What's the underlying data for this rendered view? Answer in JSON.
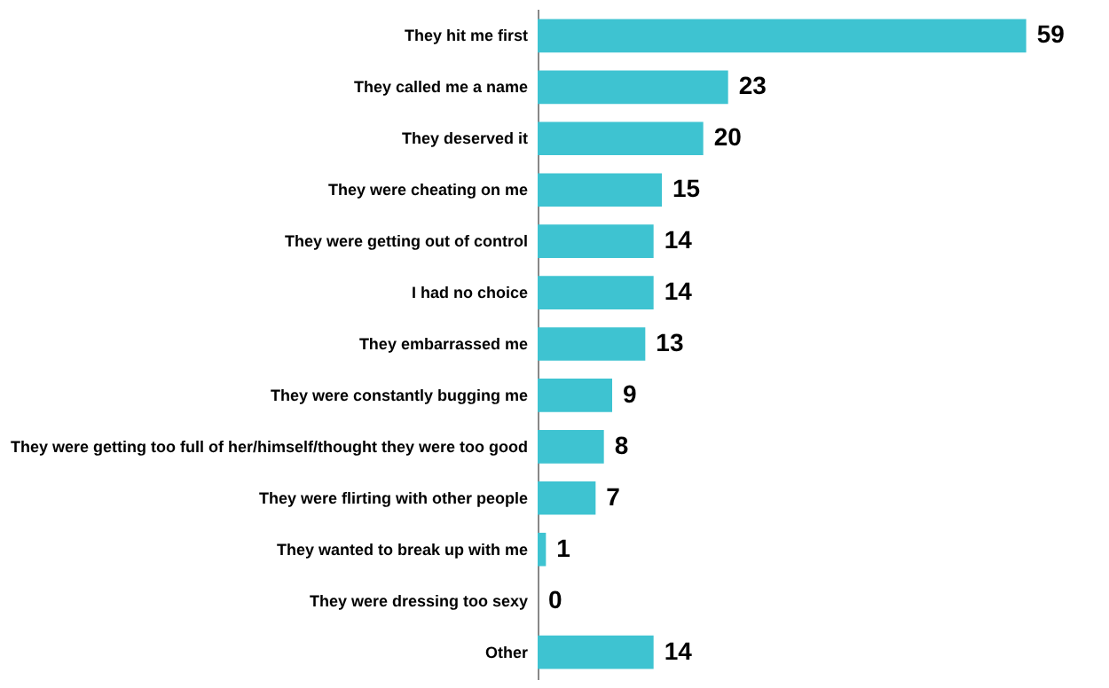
{
  "chart_data": {
    "type": "bar",
    "orientation": "horizontal",
    "categories": [
      "They hit me first",
      "They called me a name",
      "They deserved it",
      "They were cheating on me",
      "They were getting out of control",
      "I had no choice",
      "They embarrassed me",
      "They were constantly bugging me",
      "They were getting too full of her/himself/thought they were too good",
      "They were flirting with other people",
      "They wanted to break up with me",
      "They were dressing too sexy",
      "Other"
    ],
    "values": [
      59,
      23,
      20,
      15,
      14,
      14,
      13,
      9,
      8,
      7,
      1,
      0,
      14
    ],
    "color": "#3ec3d1",
    "data_labels": true
  }
}
